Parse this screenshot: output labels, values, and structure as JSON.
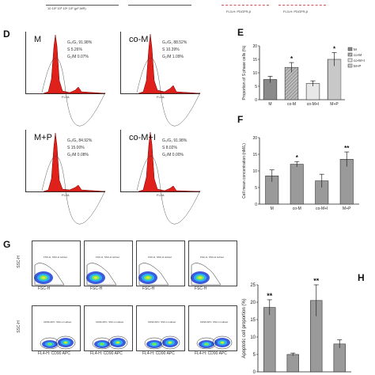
{
  "top_strip": {
    "left_axis": "10  10² 10³ 10⁴ 10⁵ (pF-MR)",
    "right_axis": "FL3-H: PDGFR-β",
    "right_axis2": "FL3-H: PDGFR-β"
  },
  "panel_labels": {
    "D": "D",
    "E": "E",
    "F": "F",
    "G": "G",
    "H": "H"
  },
  "histograms": [
    {
      "name": "M",
      "g0g1": "G₀/G₁  91.98%",
      "s": "S       5.26%",
      "g2m": "G₂/M  0.07%",
      "xlabel": "FL2A"
    },
    {
      "name": "co-M",
      "g0g1": "G₀/G₁  88.52%",
      "s": "S       10.39%",
      "g2m": "G₂/M  1.09%",
      "xlabel": "FL2A"
    },
    {
      "name": "M+P",
      "g0g1": "G₀/G₁  84.92%",
      "s": "S       15.00%",
      "g2m": "G₂/M  0.08%",
      "xlabel": "FL2A"
    },
    {
      "name": "co-M+I",
      "g0g1": "G₀/G₁  91.98%",
      "s": "S       8.02%",
      "g2m": "G₂/M  0.00%",
      "xlabel": "FL2A"
    }
  ],
  "flow": {
    "row1_ylabel": "SSC-H",
    "row1_xlabel": "FSC-H",
    "row2_ylabel": "SSC-H",
    "row2_xlabel": "FL4-H: CD90 APC",
    "row1_text": "FSC-H, SSC-H subset",
    "row2_text": "CD90 APC, SSC-H subset"
  },
  "chart_data": [
    {
      "panel": "E",
      "type": "bar",
      "categories": [
        "M",
        "co-M",
        "co-M+I",
        "M+P"
      ],
      "values": [
        7.5,
        12,
        6,
        15
      ],
      "errors": [
        1.2,
        1.8,
        1.0,
        2.5
      ],
      "significance": [
        "",
        "*",
        "",
        "*"
      ],
      "ylabel": "Proportion of S phase cells (%)",
      "ylim": [
        0,
        20
      ],
      "yticks": [
        "0",
        "5",
        "10",
        "15",
        "20"
      ],
      "legend": [
        "M",
        "co-M",
        "co-M+I",
        "M+P"
      ],
      "legend_position": "right"
    },
    {
      "panel": "F",
      "type": "bar",
      "categories": [
        "M",
        "co-M",
        "co-M+I",
        "M+P"
      ],
      "values": [
        8.5,
        12,
        7,
        13.5
      ],
      "errors": [
        1.8,
        0.8,
        2.0,
        2.2
      ],
      "significance": [
        "",
        "*",
        "",
        "**"
      ],
      "ylabel": "Cell mean concentration (nM/L)",
      "ylim": [
        0,
        20
      ],
      "yticks": [
        "0",
        "5",
        "10",
        "15",
        "20"
      ]
    },
    {
      "panel": "H",
      "type": "bar",
      "categories": [
        "",
        "",
        "",
        ""
      ],
      "values": [
        18.5,
        5,
        20.5,
        8
      ],
      "errors": [
        2.2,
        0.4,
        4.5,
        1.2
      ],
      "significance": [
        "**",
        "",
        "**",
        ""
      ],
      "ylabel": "Apoptotic cell proportion (%)",
      "ylim": [
        0,
        25
      ],
      "yticks": [
        "0",
        "5",
        "10",
        "15",
        "20",
        "25"
      ]
    }
  ]
}
